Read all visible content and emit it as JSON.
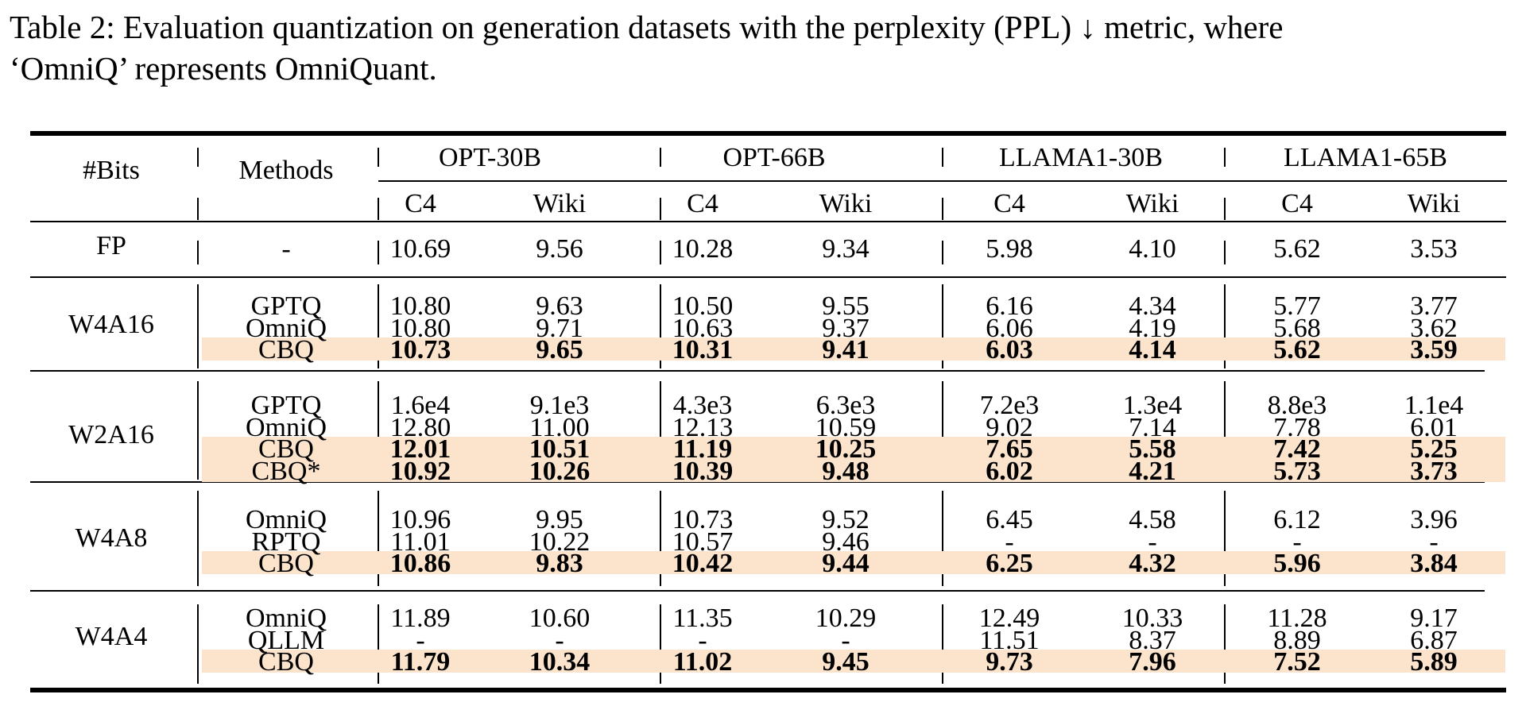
{
  "caption": {
    "line1": "Table 2: Evaluation quantization on generation datasets with the perplexity (PPL) ↓ metric, where",
    "line2": "‘OmniQ’ represents OmniQuant."
  },
  "header": {
    "bits": "#Bits",
    "methods": "Methods",
    "models": [
      "OPT-30B",
      "OPT-66B",
      "LLAMA1-30B",
      "LLAMA1-65B"
    ],
    "subcols": [
      "C4",
      "Wiki",
      "C4",
      "Wiki",
      "C4",
      "Wiki",
      "C4",
      "Wiki"
    ]
  },
  "groups": [
    {
      "bits": "FP",
      "rows": [
        {
          "method": "-",
          "values": [
            "10.69",
            "9.56",
            "10.28",
            "9.34",
            "5.98",
            "4.10",
            "5.62",
            "3.53"
          ],
          "highlight": false
        }
      ]
    },
    {
      "bits": "W4A16",
      "rows": [
        {
          "method": "GPTQ",
          "values": [
            "10.80",
            "9.63",
            "10.50",
            "9.55",
            "6.16",
            "4.34",
            "5.77",
            "3.77"
          ],
          "highlight": false
        },
        {
          "method": "OmniQ",
          "values": [
            "10.80",
            "9.71",
            "10.63",
            "9.37",
            "6.06",
            "4.19",
            "5.68",
            "3.62"
          ],
          "highlight": false
        },
        {
          "method": "CBQ",
          "values": [
            "10.73",
            "9.65",
            "10.31",
            "9.41",
            "6.03",
            "4.14",
            "5.62",
            "3.59"
          ],
          "highlight": true
        }
      ]
    },
    {
      "bits": "W2A16",
      "rows": [
        {
          "method": "GPTQ",
          "values": [
            "1.6e4",
            "9.1e3",
            "4.3e3",
            "6.3e3",
            "7.2e3",
            "1.3e4",
            "8.8e3",
            "1.1e4"
          ],
          "highlight": false
        },
        {
          "method": "OmniQ",
          "values": [
            "12.80",
            "11.00",
            "12.13",
            "10.59",
            "9.02",
            "7.14",
            "7.78",
            "6.01"
          ],
          "highlight": false
        },
        {
          "method": "CBQ",
          "values": [
            "12.01",
            "10.51",
            "11.19",
            "10.25",
            "7.65",
            "5.58",
            "7.42",
            "5.25"
          ],
          "highlight": true
        },
        {
          "method": "CBQ*",
          "values": [
            "10.92",
            "10.26",
            "10.39",
            "9.48",
            "6.02",
            "4.21",
            "5.73",
            "3.73"
          ],
          "highlight": true
        }
      ]
    },
    {
      "bits": "W4A8",
      "rows": [
        {
          "method": "OmniQ",
          "values": [
            "10.96",
            "9.95",
            "10.73",
            "9.52",
            "6.45",
            "4.58",
            "6.12",
            "3.96"
          ],
          "highlight": false
        },
        {
          "method": "RPTQ",
          "values": [
            "11.01",
            "10.22",
            "10.57",
            "9.46",
            "-",
            "-",
            "-",
            "-"
          ],
          "highlight": false
        },
        {
          "method": "CBQ",
          "values": [
            "10.86",
            "9.83",
            "10.42",
            "9.44",
            "6.25",
            "4.32",
            "5.96",
            "3.84"
          ],
          "highlight": true
        }
      ]
    },
    {
      "bits": "W4A4",
      "rows": [
        {
          "method": "OmniQ",
          "values": [
            "11.89",
            "10.60",
            "11.35",
            "10.29",
            "12.49",
            "10.33",
            "11.28",
            "9.17"
          ],
          "highlight": false
        },
        {
          "method": "QLLM",
          "values": [
            "-",
            "-",
            "-",
            "-",
            "11.51",
            "8.37",
            "8.89",
            "6.87"
          ],
          "highlight": false
        },
        {
          "method": "CBQ",
          "values": [
            "11.79",
            "10.34",
            "11.02",
            "9.45",
            "9.73",
            "7.96",
            "7.52",
            "5.89"
          ],
          "highlight": true
        }
      ]
    }
  ]
}
